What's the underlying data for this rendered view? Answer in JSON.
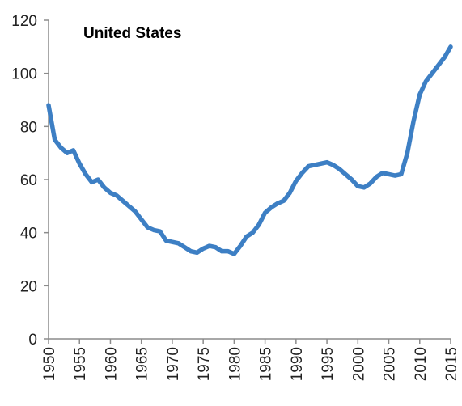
{
  "chart_data": {
    "type": "line",
    "title": "United States",
    "xlabel": "",
    "ylabel": "",
    "xlim": [
      1950,
      2015
    ],
    "ylim": [
      0,
      120
    ],
    "x_ticks": [
      "1950",
      "1955",
      "1960",
      "1965",
      "1970",
      "1975",
      "1980",
      "1985",
      "1990",
      "1995",
      "2000",
      "2005",
      "2010",
      "2015"
    ],
    "y_ticks": [
      "0",
      "20",
      "40",
      "60",
      "80",
      "100",
      "120"
    ],
    "grid": false,
    "legend": "none",
    "series": [
      {
        "color": "#3d7fc4",
        "x": [
          1950,
          1951,
          1952,
          1953,
          1954,
          1955,
          1956,
          1957,
          1958,
          1959,
          1960,
          1961,
          1962,
          1963,
          1964,
          1965,
          1966,
          1967,
          1968,
          1969,
          1970,
          1971,
          1972,
          1973,
          1974,
          1975,
          1976,
          1977,
          1978,
          1979,
          1980,
          1981,
          1982,
          1983,
          1984,
          1985,
          1986,
          1987,
          1988,
          1989,
          1990,
          1991,
          1992,
          1993,
          1994,
          1995,
          1996,
          1997,
          1998,
          1999,
          2000,
          2001,
          2002,
          2003,
          2004,
          2005,
          2006,
          2007,
          2008,
          2009,
          2010,
          2011,
          2012,
          2013,
          2014,
          2015
        ],
        "values": [
          88,
          75,
          72,
          70,
          71,
          66,
          62,
          59,
          60,
          57,
          55,
          54,
          52,
          50,
          48,
          45,
          42,
          41,
          40.5,
          37,
          36.5,
          36,
          34.5,
          33,
          32.5,
          34,
          35,
          34.5,
          33,
          33,
          32,
          35,
          38.5,
          40,
          43,
          47.5,
          49.5,
          51,
          52,
          55,
          59.5,
          62.5,
          65,
          65.5,
          66,
          66.5,
          65.5,
          64,
          62,
          60,
          57.5,
          57,
          58.5,
          61,
          62.5,
          62,
          61.5,
          62,
          70,
          82,
          92,
          97,
          100,
          103,
          106,
          110
        ]
      }
    ]
  }
}
